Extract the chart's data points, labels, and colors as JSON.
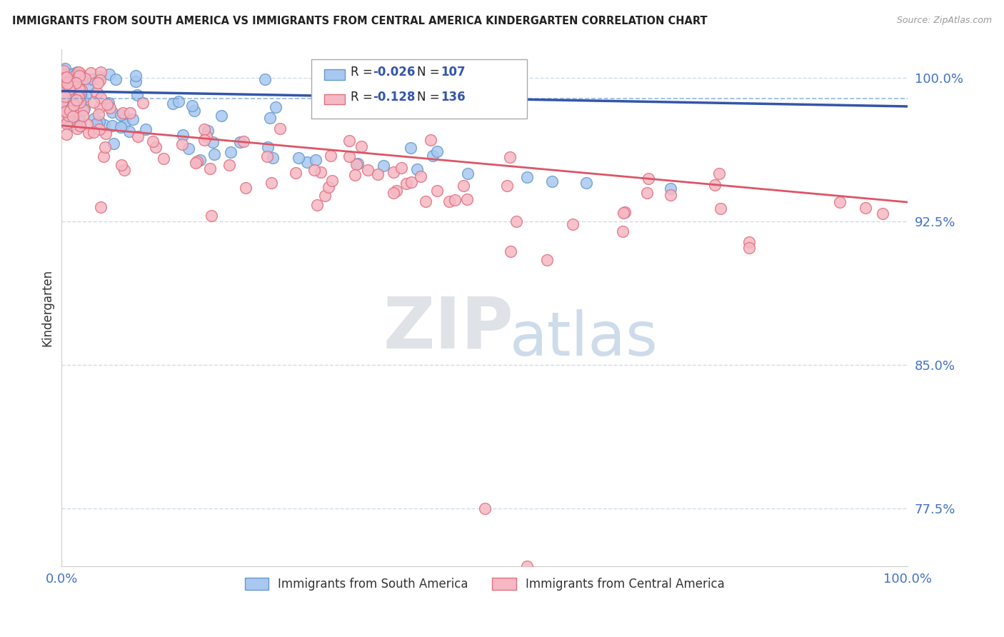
{
  "title": "IMMIGRANTS FROM SOUTH AMERICA VS IMMIGRANTS FROM CENTRAL AMERICA KINDERGARTEN CORRELATION CHART",
  "source": "Source: ZipAtlas.com",
  "ylabel": "Kindergarten",
  "legend_label_blue": "Immigrants from South America",
  "legend_label_pink": "Immigrants from Central America",
  "R_blue": -0.026,
  "N_blue": 107,
  "R_pink": -0.128,
  "N_pink": 136,
  "color_blue_fill": "#A8C8F0",
  "color_blue_edge": "#6699CC",
  "color_pink_fill": "#F5B8C4",
  "color_pink_edge": "#E07080",
  "color_blue_line": "#3355AA",
  "color_pink_line": "#DD5566",
  "color_blue_dash": "#6699CC",
  "xlim": [
    0.0,
    1.0
  ],
  "ylim": [
    0.745,
    1.015
  ],
  "ytick_vals": [
    0.775,
    0.85,
    0.925,
    1.0
  ],
  "ytick_labels": [
    "77.5%",
    "85.0%",
    "92.5%",
    "100.0%"
  ],
  "background_color": "#FFFFFF",
  "grid_color": "#D0DCE8",
  "watermark_zip": "ZIP",
  "watermark_atlas": "atlas",
  "blue_line_y0": 0.993,
  "blue_line_y1": 0.985,
  "pink_line_y0": 0.975,
  "pink_line_y1": 0.935,
  "dash_line_y": 0.989
}
